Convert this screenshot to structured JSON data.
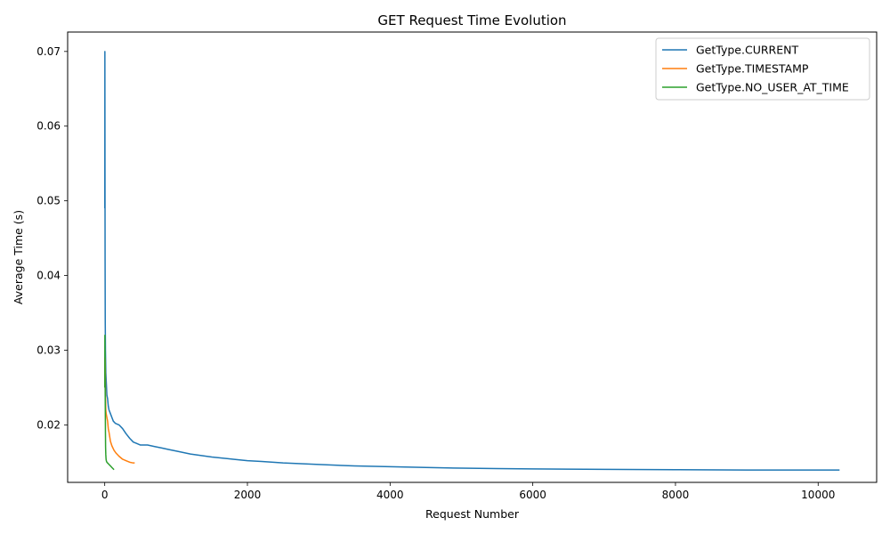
{
  "chart_data": {
    "type": "line",
    "title": "GET Request Time Evolution",
    "xlabel": "Request Number",
    "ylabel": "Average Time (s)",
    "xlim": [
      -520,
      10820
    ],
    "ylim": [
      0.0123,
      0.0726
    ],
    "xticks": [
      0,
      2000,
      4000,
      6000,
      8000,
      10000
    ],
    "xtick_labels": [
      "0",
      "2000",
      "4000",
      "6000",
      "8000",
      "10000"
    ],
    "yticks": [
      0.02,
      0.03,
      0.04,
      0.05,
      0.06,
      0.07
    ],
    "ytick_labels": [
      "0.02",
      "0.03",
      "0.04",
      "0.05",
      "0.06",
      "0.07"
    ],
    "grid": false,
    "legend_position": "top-right",
    "series": [
      {
        "name": "GetType.CURRENT",
        "color": "#1f77b4",
        "x": [
          1,
          2,
          3,
          4,
          5,
          7,
          10,
          15,
          20,
          30,
          40,
          50,
          60,
          80,
          100,
          120,
          150,
          200,
          250,
          300,
          350,
          400,
          450,
          500,
          600,
          700,
          800,
          900,
          1000,
          1200,
          1500,
          1800,
          2000,
          2200,
          2500,
          3000,
          3500,
          4000,
          4500,
          5000,
          5500,
          6000,
          7000,
          8000,
          9000,
          10000,
          10300
        ],
        "values": [
          0.049,
          0.07,
          0.06,
          0.05,
          0.042,
          0.034,
          0.03,
          0.027,
          0.026,
          0.024,
          0.0235,
          0.0225,
          0.022,
          0.0215,
          0.021,
          0.0205,
          0.0202,
          0.02,
          0.0195,
          0.0188,
          0.0182,
          0.0177,
          0.0175,
          0.0173,
          0.0173,
          0.0171,
          0.0169,
          0.0167,
          0.0165,
          0.0161,
          0.0157,
          0.0154,
          0.0152,
          0.0151,
          0.0149,
          0.0147,
          0.0145,
          0.0144,
          0.0143,
          0.0142,
          0.01415,
          0.0141,
          0.01405,
          0.014,
          0.01395,
          0.01395,
          0.01395
        ]
      },
      {
        "name": "GetType.TIMESTAMP",
        "color": "#ff7f0e",
        "x": [
          1,
          3,
          5,
          8,
          10,
          15,
          20,
          30,
          40,
          50,
          60,
          80,
          100,
          130,
          160,
          200,
          250,
          300,
          350,
          400,
          420
        ],
        "values": [
          0.025,
          0.029,
          0.0285,
          0.027,
          0.024,
          0.022,
          0.0215,
          0.021,
          0.0205,
          0.0195,
          0.019,
          0.0178,
          0.0172,
          0.0166,
          0.0162,
          0.0158,
          0.0154,
          0.0152,
          0.015,
          0.0149,
          0.0149
        ]
      },
      {
        "name": "GetType.NO_USER_AT_TIME",
        "color": "#2ca02c",
        "x": [
          1,
          2,
          3,
          4,
          5,
          6,
          8,
          10,
          12,
          15,
          18,
          20,
          25,
          30,
          40,
          50,
          60,
          80,
          100,
          120,
          130
        ],
        "values": [
          0.025,
          0.032,
          0.029,
          0.03,
          0.027,
          0.025,
          0.022,
          0.019,
          0.017,
          0.016,
          0.0155,
          0.0153,
          0.0151,
          0.015,
          0.0149,
          0.0148,
          0.0147,
          0.0145,
          0.0143,
          0.0141,
          0.014
        ]
      }
    ]
  }
}
